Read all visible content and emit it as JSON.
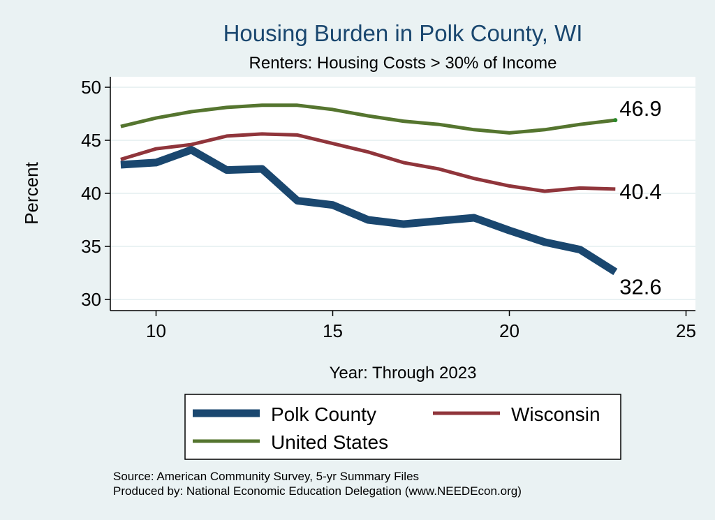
{
  "chart_data": {
    "type": "line",
    "title": "Housing Burden in Polk County, WI",
    "subtitle": "Renters: Housing Costs > 30% of Income",
    "xlabel": "Year: Through 2023",
    "ylabel": "Percent",
    "xlim": [
      9,
      25
    ],
    "ylim": [
      30,
      50
    ],
    "xticks": [
      10,
      15,
      20,
      25
    ],
    "yticks": [
      30,
      35,
      40,
      45,
      50
    ],
    "grid": true,
    "legend_position": "bottom",
    "series": [
      {
        "name": "Polk County",
        "color": "#1a476f",
        "x": [
          9,
          10,
          11,
          12,
          13,
          14,
          15,
          16,
          17,
          18,
          19,
          20,
          21,
          22,
          23
        ],
        "values": [
          42.7,
          42.9,
          44.1,
          42.2,
          42.3,
          39.3,
          38.9,
          37.5,
          37.1,
          37.4,
          37.7,
          36.5,
          35.4,
          34.7,
          32.6
        ],
        "end_label": "32.6"
      },
      {
        "name": "Wisconsin",
        "color": "#90353b",
        "x": [
          9,
          10,
          11,
          12,
          13,
          14,
          15,
          16,
          17,
          18,
          19,
          20,
          21,
          22,
          23
        ],
        "values": [
          43.2,
          44.2,
          44.6,
          45.4,
          45.6,
          45.5,
          44.7,
          43.9,
          42.9,
          42.3,
          41.4,
          40.7,
          40.2,
          40.5,
          40.4
        ],
        "end_label": "40.4"
      },
      {
        "name": "United States",
        "color": "#55752f",
        "x": [
          9,
          10,
          11,
          12,
          13,
          14,
          15,
          16,
          17,
          18,
          19,
          20,
          21,
          22,
          23
        ],
        "values": [
          46.3,
          47.1,
          47.7,
          48.1,
          48.3,
          48.3,
          47.9,
          47.3,
          46.8,
          46.5,
          46.0,
          45.7,
          46.0,
          46.5,
          46.9
        ],
        "end_label": "46.9"
      }
    ]
  },
  "footer": {
    "source": "Source: American Community Survey, 5-yr Summary Files",
    "produced": "Produced by: National Economic Education Delegation (www.NEEDEcon.org)"
  }
}
